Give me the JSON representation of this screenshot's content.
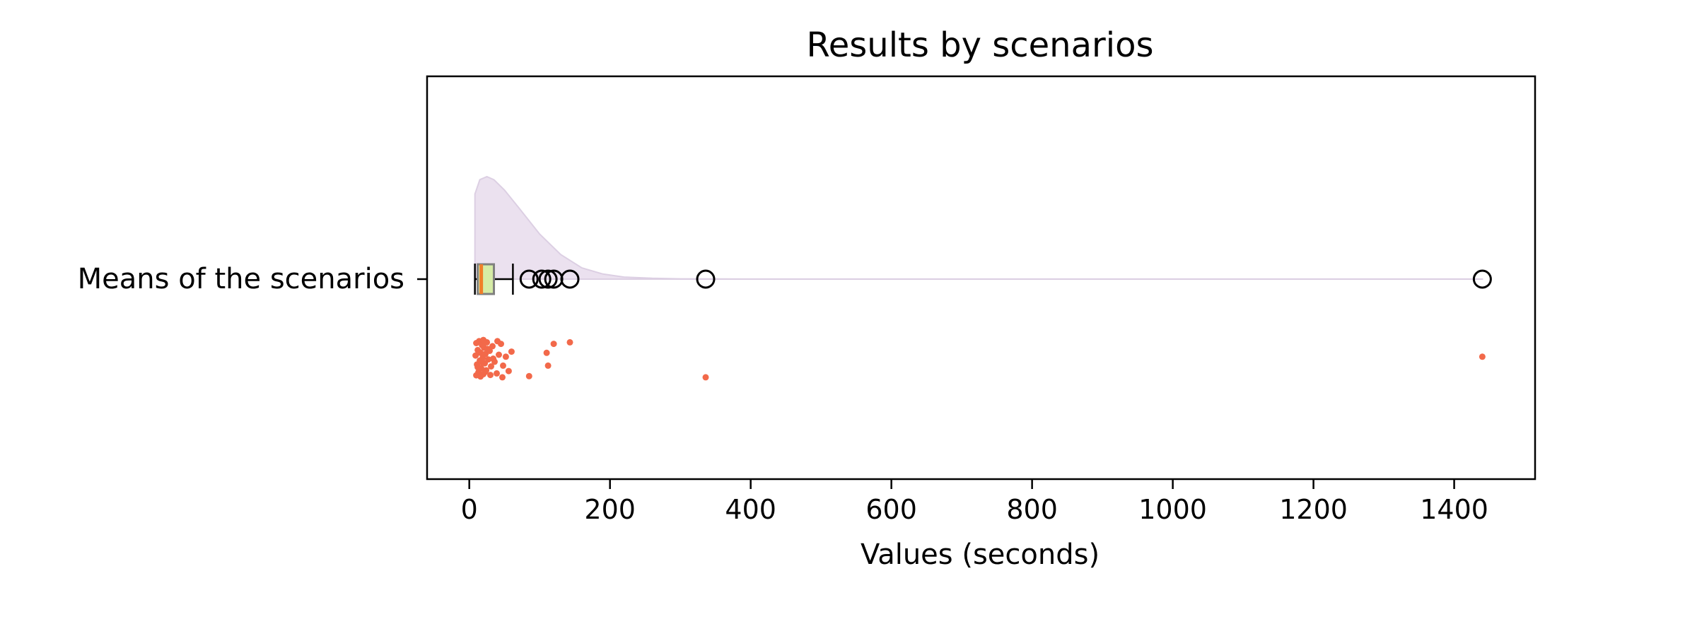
{
  "chart_data": {
    "type": "boxplot",
    "title": "Results by scenarios",
    "xlabel": "Values (seconds)",
    "ylabel": "",
    "xlim": [
      -60,
      1515
    ],
    "xticks": [
      0,
      200,
      400,
      600,
      800,
      1000,
      1200,
      1400
    ],
    "xtick_labels": [
      "0",
      "200",
      "400",
      "600",
      "800",
      "1000",
      "1200",
      "1400"
    ],
    "categories": [
      "Means of the scenarios"
    ],
    "grid": false,
    "box": {
      "whisker_low": 8,
      "q1": 12,
      "median": 17,
      "q3": 35,
      "whisker_high": 62
    },
    "outliers": [
      85,
      103,
      112,
      120,
      143,
      336,
      1440
    ],
    "density": {
      "x": [
        8,
        15,
        25,
        35,
        50,
        70,
        100,
        130,
        160,
        190,
        220,
        260,
        300,
        400,
        600,
        900,
        1200,
        1440
      ],
      "height": [
        0.83,
        0.97,
        1.0,
        0.97,
        0.87,
        0.7,
        0.44,
        0.24,
        0.11,
        0.05,
        0.02,
        0.008,
        0.003,
        0.001,
        0.001,
        0.001,
        0.001,
        0.001
      ]
    },
    "strip_points": [
      {
        "x": 9,
        "y": 0.42
      },
      {
        "x": 10,
        "y": 0.1
      },
      {
        "x": 11,
        "y": 0.65
      },
      {
        "x": 12,
        "y": 0.28
      },
      {
        "x": 13,
        "y": 0.85
      },
      {
        "x": 14,
        "y": 0.05
      },
      {
        "x": 15,
        "y": 0.55
      },
      {
        "x": 16,
        "y": 0.35
      },
      {
        "x": 17,
        "y": 0.75
      },
      {
        "x": 18,
        "y": 0.15
      },
      {
        "x": 19,
        "y": 0.48
      },
      {
        "x": 20,
        "y": 0.9
      },
      {
        "x": 21,
        "y": 0.22
      },
      {
        "x": 22,
        "y": 0.62
      },
      {
        "x": 23,
        "y": 0.38
      },
      {
        "x": 24,
        "y": 0.8
      },
      {
        "x": 25,
        "y": 0.08
      },
      {
        "x": 27,
        "y": 0.52
      },
      {
        "x": 29,
        "y": 0.3
      },
      {
        "x": 31,
        "y": 0.7
      },
      {
        "x": 33,
        "y": 0.18
      },
      {
        "x": 36,
        "y": 0.58
      },
      {
        "x": 39,
        "y": 0.88
      },
      {
        "x": 42,
        "y": 0.4
      },
      {
        "x": 45,
        "y": 0.12
      },
      {
        "x": 48,
        "y": 0.68
      },
      {
        "x": 52,
        "y": 0.45
      },
      {
        "x": 56,
        "y": 0.82
      },
      {
        "x": 60,
        "y": 0.32
      },
      {
        "x": 85,
        "y": 0.95
      },
      {
        "x": 110,
        "y": 0.35
      },
      {
        "x": 112,
        "y": 0.68
      },
      {
        "x": 120,
        "y": 0.12
      },
      {
        "x": 143,
        "y": 0.08
      },
      {
        "x": 336,
        "y": 0.98
      },
      {
        "x": 1440,
        "y": 0.45
      },
      {
        "x": 10,
        "y": 0.93
      },
      {
        "x": 12,
        "y": 0.72
      },
      {
        "x": 14,
        "y": 0.33
      },
      {
        "x": 16,
        "y": 0.96
      },
      {
        "x": 18,
        "y": 0.6
      },
      {
        "x": 20,
        "y": 0.02
      },
      {
        "x": 22,
        "y": 0.85
      },
      {
        "x": 26,
        "y": 0.25
      },
      {
        "x": 30,
        "y": 0.92
      },
      {
        "x": 34,
        "y": 0.5
      },
      {
        "x": 40,
        "y": 0.05
      },
      {
        "x": 47,
        "y": 0.98
      }
    ],
    "colors": {
      "violin": "#e8dcec",
      "box_face": "#d6eca6",
      "box_edge": "#808080",
      "median": "#f07f2a",
      "strip": "#f2694a",
      "outline": "#000000"
    }
  }
}
